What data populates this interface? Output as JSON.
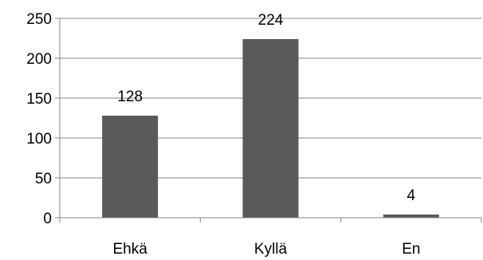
{
  "chart_data": {
    "type": "bar",
    "categories": [
      "Ehkä",
      "Kyllä",
      "En"
    ],
    "values": [
      128,
      224,
      4
    ],
    "data_labels": [
      "128",
      "224",
      "4"
    ],
    "ylim": [
      0,
      250
    ],
    "yticks": [
      0,
      50,
      100,
      150,
      200,
      250
    ],
    "ytick_labels": [
      "0",
      "50",
      "100",
      "150",
      "200",
      "250"
    ],
    "grid": true,
    "legend": "none",
    "bar_color": "#595959",
    "grid_color": "#868686"
  }
}
